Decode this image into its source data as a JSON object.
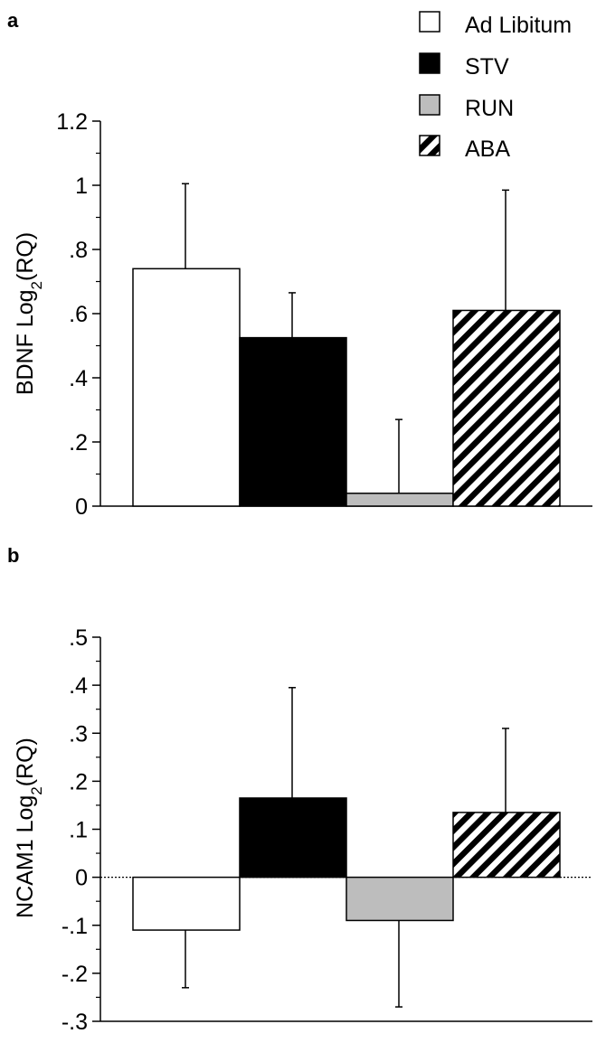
{
  "legend": {
    "items": [
      {
        "label": "Ad Libitum",
        "fill": "#ffffff"
      },
      {
        "label": "STV",
        "fill": "#000000"
      },
      {
        "label": "RUN",
        "fill": "#bdbdbd"
      },
      {
        "label": "ABA",
        "fill": "hatch"
      }
    ]
  },
  "colors": {
    "ad_libitum": "#ffffff",
    "stv": "#000000",
    "run": "#bdbdbd",
    "aba_hatch": "#000000"
  },
  "chart_data": [
    {
      "panel": "a",
      "type": "bar",
      "categories": [
        "Ad Libitum",
        "STV",
        "RUN",
        "ABA"
      ],
      "values": [
        0.74,
        0.525,
        0.04,
        0.61
      ],
      "error_bars": [
        0.265,
        0.14,
        0.23,
        0.375
      ],
      "ylabel_main": "BDNF Log",
      "ylabel_sub": "2",
      "ylabel_tail": "(RQ)",
      "ylim": [
        0,
        1.2
      ],
      "yticks": [
        {
          "value": 0,
          "label": "0"
        },
        {
          "value": 0.2,
          "label": ".2"
        },
        {
          "value": 0.4,
          "label": ".4"
        },
        {
          "value": 0.6,
          "label": ".6"
        },
        {
          "value": 0.8,
          "label": ".8"
        },
        {
          "value": 1.0,
          "label": "1"
        },
        {
          "value": 1.2,
          "label": "1.2"
        }
      ],
      "minor_ticks": true,
      "grid": false,
      "legend_position": "top-right"
    },
    {
      "panel": "b",
      "type": "bar",
      "categories": [
        "Ad Libitum",
        "STV",
        "RUN",
        "ABA"
      ],
      "values": [
        -0.11,
        0.165,
        -0.09,
        0.135
      ],
      "error_bars": [
        0.12,
        0.23,
        0.18,
        0.175
      ],
      "ylabel_main": "NCAM1 Log",
      "ylabel_sub": "2",
      "ylabel_tail": "(RQ)",
      "ylim": [
        -0.3,
        0.5
      ],
      "yticks": [
        {
          "value": -0.3,
          "label": "-.3"
        },
        {
          "value": -0.2,
          "label": "-.2"
        },
        {
          "value": -0.1,
          "label": "-.1"
        },
        {
          "value": 0,
          "label": "0"
        },
        {
          "value": 0.1,
          "label": ".1"
        },
        {
          "value": 0.2,
          "label": ".2"
        },
        {
          "value": 0.3,
          "label": ".3"
        },
        {
          "value": 0.4,
          "label": ".4"
        },
        {
          "value": 0.5,
          "label": ".5"
        }
      ],
      "minor_ticks": true,
      "zero_line": "dotted",
      "grid": false
    }
  ]
}
